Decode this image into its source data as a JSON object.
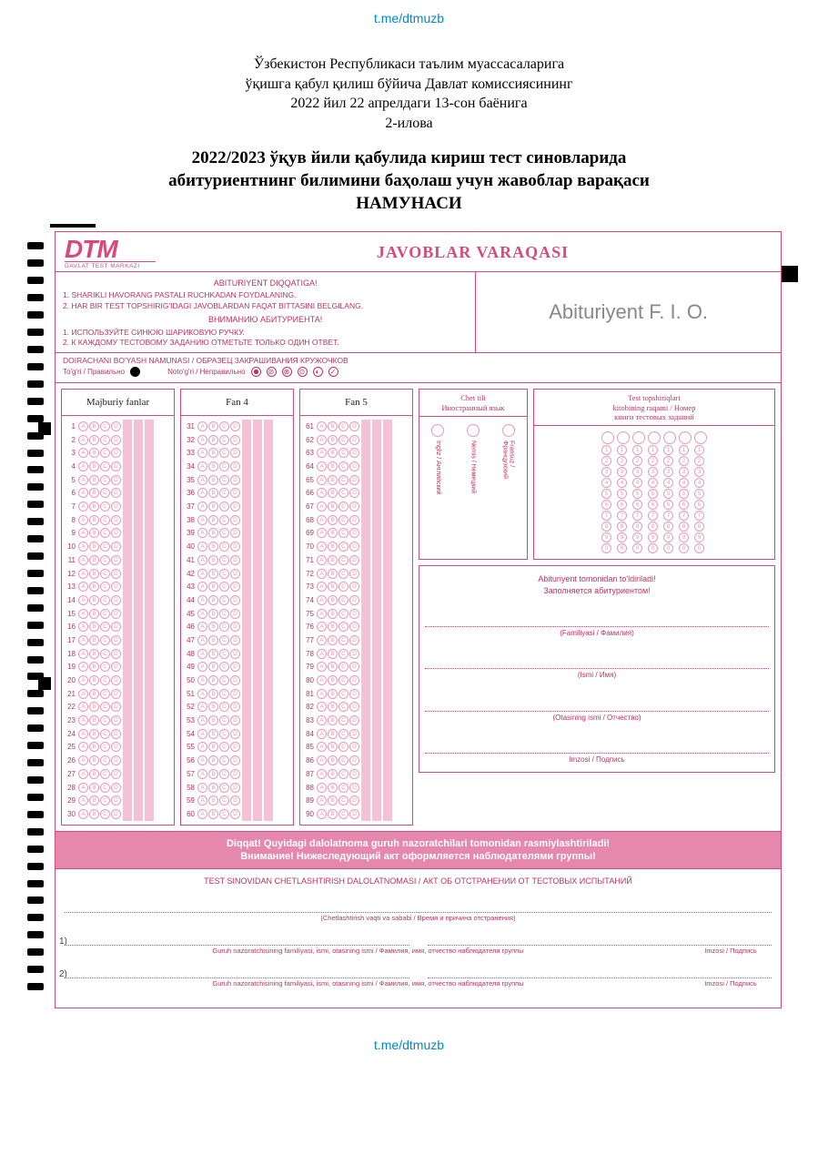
{
  "telegram_link": "t.me/dtmuzb",
  "header": {
    "line1": "Ўзбекистон Республикаси таълим муассасаларига",
    "line2": "ўқишга қабул қилиш бўйича Давлат комиссиясининг",
    "line3": "2022 йил 22 апрелдаги 13-сон баёнига",
    "line4": "2-илова"
  },
  "title": {
    "line1": "2022/2023 ўқув йили қабулида кириш тест синовларида",
    "line2": "абитуриентнинг билимини баҳолаш учун жавоблар варақаси",
    "line3": "НАМУНАСИ"
  },
  "sheet": {
    "title": "JAVOBLAR VARAQASI",
    "logo": "DTM",
    "logo_sub": "DAVLAT TEST MARKAZI",
    "instr_head_uz": "ABITURIYENT DIQQATIGA!",
    "instr1_uz": "1. SHARIKLI HAVORANG PASTALI RUCHKADAN FOYDALANING.",
    "instr2_uz": "2. HAR BIR TEST TOPSHIRIG'IDAGI JAVOBLARDAN FAQAT BITTASINI BELGILANG.",
    "instr_head_ru": "ВНИМАНИЮ АБИТУРИЕНТА!",
    "instr1_ru": "1. ИСПОЛЬЗУЙТЕ СИНЮЮ ШАРИКОВУЮ РУЧКУ.",
    "instr2_ru": "2. К КАЖДОМУ ТЕСТОВОМУ ЗАДАНИЮ ОТМЕТЬТЕ ТОЛЬКО ОДИН ОТВЕТ.",
    "fio_placeholder": "Abituriyent F. I. O.",
    "sample_title": "DOIRACHANI BO'YASH NAMUNASI / ОБРАЗЕЦ ЗАКРАШИВАНИЯ КРУЖОЧКОВ",
    "correct_label": "To'g'ri / Правильно",
    "wrong_label": "Noto'g'ri / Неправильно"
  },
  "columns": {
    "col1_head": "Majburiy fanlar",
    "col2_head": "Fan 4",
    "col3_head": "Fan 5",
    "lang_head1": "Chet tili",
    "lang_head2": "Иностранный язык",
    "book_head1": "Test topshiriqlari",
    "book_head2": "kitobining raqami / Номер",
    "book_head3": "книги тестовых заданий",
    "col1_start": 1,
    "col1_end": 30,
    "col2_start": 31,
    "col2_end": 60,
    "col3_start": 61,
    "col3_end": 90,
    "options": [
      "A",
      "B",
      "C",
      "D"
    ],
    "languages": [
      "Ingliz / Английский",
      "Nemis / Немецкий",
      "Fransuz / Французский"
    ],
    "digit_count": 7,
    "digits": [
      "1",
      "2",
      "3",
      "4",
      "5",
      "6",
      "7",
      "8",
      "9",
      "0"
    ]
  },
  "fill_section": {
    "head1": "Abituriyent tomonidan to'ldiriladi!",
    "head2": "Заполняется абитуриентом!",
    "familiya": "(Familiyasi / Фамилия)",
    "ism": "(Ismi / Имя)",
    "otasi": "(Otasining ismi / Отчество)",
    "imzo": "Imzosi / Подпись"
  },
  "banner": {
    "line1": "Diqqat! Quyidagi dalolatnoma guruh nazoratchilari tomonidan rasmiylashtiriladi!",
    "line2": "Внимание! Нижеследующий акт оформляется наблюдателями группы!"
  },
  "removal": {
    "title": "TEST SINOVIDAN CHETLASHTIRISH DALOLATNOMASI / АКТ ОБ ОТСТРАНЕНИИ ОТ ТЕСТОВЫХ ИСПЫТАНИЙ",
    "reason": "(Chetlashtirish vaqti va sababi / Время и причина отстранения)",
    "observer": "Guruh nazoratchisining familiyasi, ismi, otasining ismi / Фамилия, имя, отчество наблюдателя группы",
    "sign": "Imzosi / Подпись",
    "n1": "1)",
    "n2": "2)"
  },
  "colors": {
    "pink": "#d94a7a",
    "light_pink": "#f4c2d4",
    "bubble": "#e89ab5"
  }
}
